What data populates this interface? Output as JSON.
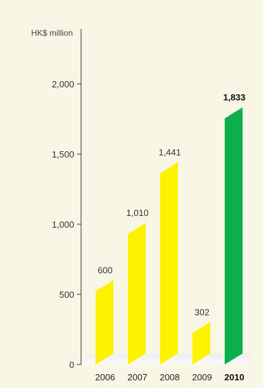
{
  "chart_data": {
    "type": "bar",
    "ylabel": "HK$ million",
    "ylim": [
      0,
      2000
    ],
    "yticks": [
      0,
      500,
      1000,
      1500,
      2000
    ],
    "ytick_labels": [
      "0",
      "500",
      "1,000",
      "1,500",
      "2,000"
    ],
    "categories": [
      "2006",
      "2007",
      "2008",
      "2009",
      "2010"
    ],
    "values": [
      600,
      1010,
      1441,
      302,
      1833
    ],
    "value_labels": [
      "600",
      "1,010",
      "1,441",
      "302",
      "1,833"
    ],
    "highlight_index": 4,
    "colors": {
      "bar": "#fff200",
      "highlight": "#0cb04a",
      "panel": "#f8f6e4",
      "axis": "#333333"
    },
    "grid": false,
    "legend": "none"
  }
}
